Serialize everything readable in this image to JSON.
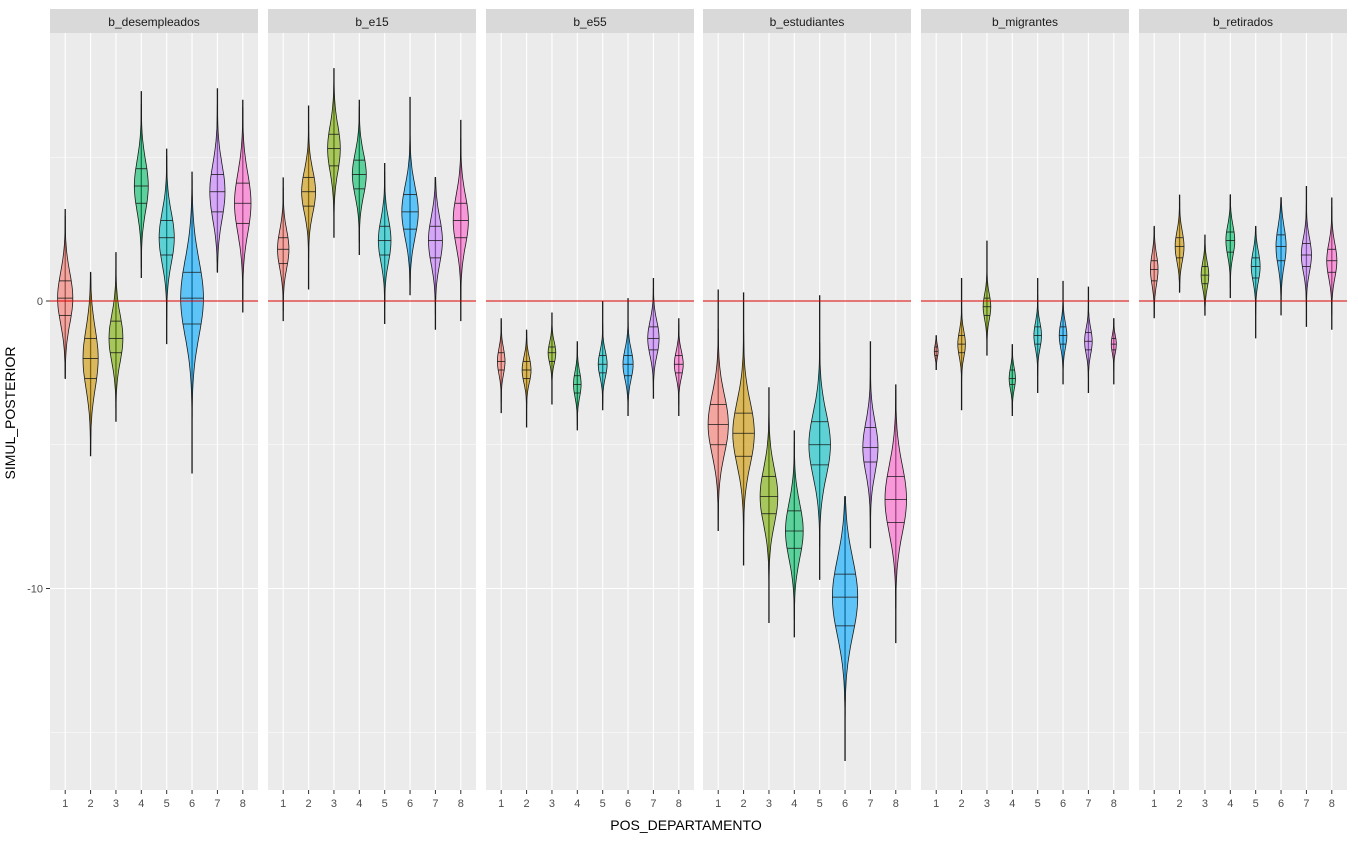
{
  "chart_data": {
    "type": "violin",
    "xlabel": "POS_DEPARTAMENTO",
    "ylabel": "SIMUL_POSTERIOR",
    "y_ticks": [
      0,
      -10
    ],
    "x_ticks": [
      "1",
      "2",
      "3",
      "4",
      "5",
      "6",
      "7",
      "8"
    ],
    "ylim": [
      -17,
      10
    ],
    "xlim": [
      0.4,
      8.6
    ],
    "reference_line": {
      "y": 0,
      "color": "#dd0000"
    },
    "quantiles_drawn": [
      0.25,
      0.5,
      0.75
    ],
    "group_colors": [
      "#F8766D",
      "#CD9600",
      "#7CAE00",
      "#00BE67",
      "#00BFC4",
      "#00A9FF",
      "#C77CFF",
      "#FF61CC"
    ],
    "fill_opacity": 0.6,
    "panel_background": "#ebebeb",
    "strip_background": "#d9d9d9",
    "panels": [
      {
        "strip": "b_desempleados",
        "groups": [
          {
            "x": 1,
            "min": -2.7,
            "max": 3.2,
            "q1": -0.5,
            "median": 0.1,
            "q3": 0.7,
            "spread": 0.6
          },
          {
            "x": 2,
            "min": -5.4,
            "max": 1.0,
            "q1": -2.7,
            "median": -2.0,
            "q3": -1.3,
            "spread": 0.6
          },
          {
            "x": 3,
            "min": -4.2,
            "max": 1.7,
            "q1": -1.8,
            "median": -1.3,
            "q3": -0.7,
            "spread": 0.55
          },
          {
            "x": 4,
            "min": 0.8,
            "max": 7.3,
            "q1": 3.4,
            "median": 4.0,
            "q3": 4.6,
            "spread": 0.55
          },
          {
            "x": 5,
            "min": -1.5,
            "max": 5.3,
            "q1": 1.6,
            "median": 2.2,
            "q3": 2.8,
            "spread": 0.6
          },
          {
            "x": 6,
            "min": -6.0,
            "max": 4.5,
            "q1": -0.8,
            "median": 0.1,
            "q3": 1.0,
            "spread": 0.9
          },
          {
            "x": 7,
            "min": 1.0,
            "max": 7.4,
            "q1": 3.1,
            "median": 3.8,
            "q3": 4.4,
            "spread": 0.6
          },
          {
            "x": 8,
            "min": -0.4,
            "max": 7.0,
            "q1": 2.7,
            "median": 3.4,
            "q3": 4.1,
            "spread": 0.65
          }
        ]
      },
      {
        "strip": "b_e15",
        "groups": [
          {
            "x": 1,
            "min": -0.7,
            "max": 4.3,
            "q1": 1.3,
            "median": 1.8,
            "q3": 2.2,
            "spread": 0.45
          },
          {
            "x": 2,
            "min": 0.4,
            "max": 6.8,
            "q1": 3.3,
            "median": 3.8,
            "q3": 4.3,
            "spread": 0.55
          },
          {
            "x": 3,
            "min": 2.2,
            "max": 8.1,
            "q1": 4.7,
            "median": 5.3,
            "q3": 5.8,
            "spread": 0.5
          },
          {
            "x": 4,
            "min": 1.6,
            "max": 7.0,
            "q1": 3.9,
            "median": 4.4,
            "q3": 4.9,
            "spread": 0.55
          },
          {
            "x": 5,
            "min": -0.8,
            "max": 4.8,
            "q1": 1.6,
            "median": 2.1,
            "q3": 2.6,
            "spread": 0.5
          },
          {
            "x": 6,
            "min": 0.2,
            "max": 7.1,
            "q1": 2.5,
            "median": 3.1,
            "q3": 3.7,
            "spread": 0.65
          },
          {
            "x": 7,
            "min": -1.0,
            "max": 4.3,
            "q1": 1.5,
            "median": 2.1,
            "q3": 2.6,
            "spread": 0.55
          },
          {
            "x": 8,
            "min": -0.7,
            "max": 6.3,
            "q1": 2.2,
            "median": 2.8,
            "q3": 3.4,
            "spread": 0.6
          }
        ]
      },
      {
        "strip": "b_e55",
        "groups": [
          {
            "x": 1,
            "min": -3.9,
            "max": -0.6,
            "q1": -2.4,
            "median": -2.1,
            "q3": -1.8,
            "spread": 0.3
          },
          {
            "x": 2,
            "min": -4.4,
            "max": -1.0,
            "q1": -2.7,
            "median": -2.4,
            "q3": -2.1,
            "spread": 0.35
          },
          {
            "x": 3,
            "min": -3.6,
            "max": -0.4,
            "q1": -2.1,
            "median": -1.8,
            "q3": -1.6,
            "spread": 0.3
          },
          {
            "x": 4,
            "min": -4.5,
            "max": -1.4,
            "q1": -3.2,
            "median": -2.9,
            "q3": -2.6,
            "spread": 0.3
          },
          {
            "x": 5,
            "min": -3.8,
            "max": 0.0,
            "q1": -2.5,
            "median": -2.2,
            "q3": -1.9,
            "spread": 0.35
          },
          {
            "x": 6,
            "min": -4.0,
            "max": 0.1,
            "q1": -2.6,
            "median": -2.2,
            "q3": -1.9,
            "spread": 0.4
          },
          {
            "x": 7,
            "min": -3.4,
            "max": 0.8,
            "q1": -1.7,
            "median": -1.3,
            "q3": -0.9,
            "spread": 0.45
          },
          {
            "x": 8,
            "min": -4.0,
            "max": -0.6,
            "q1": -2.5,
            "median": -2.2,
            "q3": -1.9,
            "spread": 0.35
          }
        ]
      },
      {
        "strip": "b_estudiantes",
        "groups": [
          {
            "x": 1,
            "min": -8.0,
            "max": 0.4,
            "q1": -5.0,
            "median": -4.3,
            "q3": -3.6,
            "spread": 0.8
          },
          {
            "x": 2,
            "min": -9.2,
            "max": 0.3,
            "q1": -5.4,
            "median": -4.6,
            "q3": -3.9,
            "spread": 0.85
          },
          {
            "x": 3,
            "min": -11.2,
            "max": -3.0,
            "q1": -7.4,
            "median": -6.8,
            "q3": -6.1,
            "spread": 0.7
          },
          {
            "x": 4,
            "min": -11.7,
            "max": -4.5,
            "q1": -8.6,
            "median": -8.0,
            "q3": -7.3,
            "spread": 0.7
          },
          {
            "x": 5,
            "min": -9.7,
            "max": 0.2,
            "q1": -5.7,
            "median": -5.0,
            "q3": -4.2,
            "spread": 0.85
          },
          {
            "x": 6,
            "min": -16.0,
            "max": -6.8,
            "q1": -11.3,
            "median": -10.3,
            "q3": -9.5,
            "spread": 1.0
          },
          {
            "x": 7,
            "min": -8.6,
            "max": -1.4,
            "q1": -5.6,
            "median": -5.1,
            "q3": -4.4,
            "spread": 0.6
          },
          {
            "x": 8,
            "min": -11.9,
            "max": -2.9,
            "q1": -7.7,
            "median": -6.9,
            "q3": -6.1,
            "spread": 0.85
          }
        ]
      },
      {
        "strip": "b_migrantes",
        "groups": [
          {
            "x": 1,
            "min": -2.4,
            "max": -1.2,
            "q1": -1.9,
            "median": -1.75,
            "q3": -1.6,
            "spread": 0.15
          },
          {
            "x": 2,
            "min": -3.8,
            "max": 0.8,
            "q1": -1.8,
            "median": -1.5,
            "q3": -1.2,
            "spread": 0.3
          },
          {
            "x": 3,
            "min": -1.9,
            "max": 2.1,
            "q1": -0.5,
            "median": -0.2,
            "q3": 0.1,
            "spread": 0.3
          },
          {
            "x": 4,
            "min": -4.0,
            "max": -1.5,
            "q1": -2.9,
            "median": -2.7,
            "q3": -2.4,
            "spread": 0.25
          },
          {
            "x": 5,
            "min": -3.2,
            "max": 0.8,
            "q1": -1.5,
            "median": -1.2,
            "q3": -0.9,
            "spread": 0.3
          },
          {
            "x": 6,
            "min": -2.9,
            "max": 0.7,
            "q1": -1.5,
            "median": -1.2,
            "q3": -0.9,
            "spread": 0.3
          },
          {
            "x": 7,
            "min": -3.2,
            "max": 0.5,
            "q1": -1.7,
            "median": -1.4,
            "q3": -1.1,
            "spread": 0.3
          },
          {
            "x": 8,
            "min": -2.9,
            "max": -0.6,
            "q1": -1.7,
            "median": -1.5,
            "q3": -1.3,
            "spread": 0.2
          }
        ]
      },
      {
        "strip": "b_retirados",
        "groups": [
          {
            "x": 1,
            "min": -0.6,
            "max": 2.6,
            "q1": 0.7,
            "median": 1.1,
            "q3": 1.4,
            "spread": 0.3
          },
          {
            "x": 2,
            "min": 0.3,
            "max": 3.7,
            "q1": 1.5,
            "median": 1.9,
            "q3": 2.2,
            "spread": 0.35
          },
          {
            "x": 3,
            "min": -0.5,
            "max": 2.3,
            "q1": 0.6,
            "median": 0.9,
            "q3": 1.2,
            "spread": 0.3
          },
          {
            "x": 4,
            "min": 0.1,
            "max": 3.7,
            "q1": 1.7,
            "median": 2.1,
            "q3": 2.4,
            "spread": 0.35
          },
          {
            "x": 5,
            "min": -1.3,
            "max": 2.6,
            "q1": 0.8,
            "median": 1.2,
            "q3": 1.5,
            "spread": 0.35
          },
          {
            "x": 6,
            "min": -0.5,
            "max": 3.6,
            "q1": 1.4,
            "median": 1.9,
            "q3": 2.3,
            "spread": 0.4
          },
          {
            "x": 7,
            "min": -0.9,
            "max": 4.0,
            "q1": 1.2,
            "median": 1.6,
            "q3": 2.0,
            "spread": 0.4
          },
          {
            "x": 8,
            "min": -1.0,
            "max": 3.6,
            "q1": 1.0,
            "median": 1.4,
            "q3": 1.8,
            "spread": 0.4
          }
        ]
      }
    ]
  }
}
